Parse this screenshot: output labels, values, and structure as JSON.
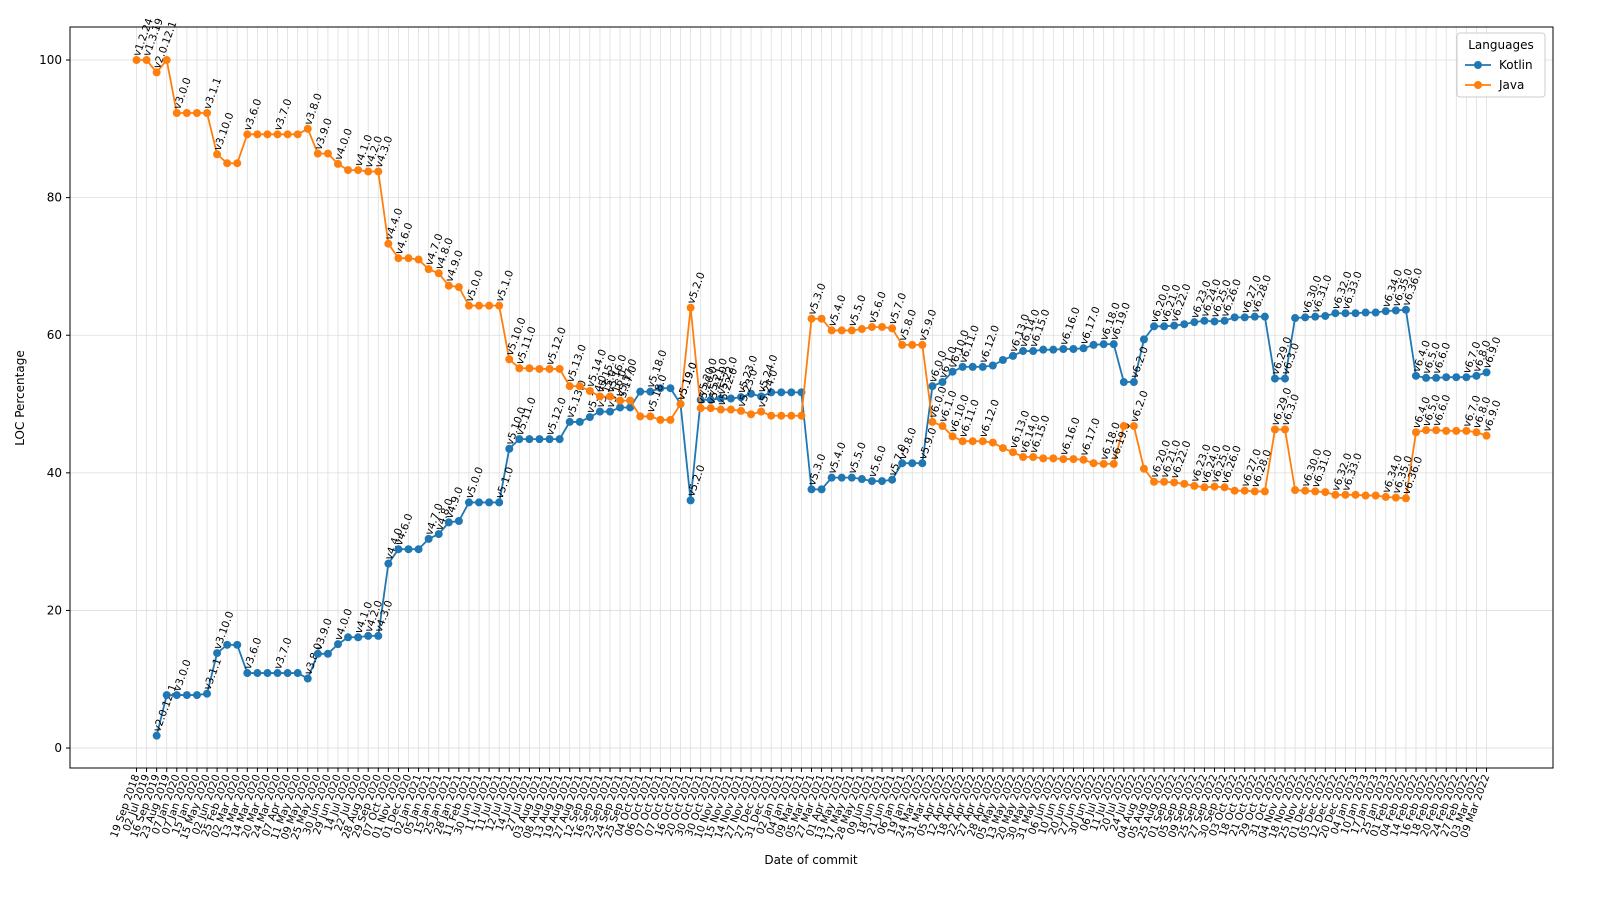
{
  "chart_data": {
    "type": "line",
    "x_label": "Date of commit",
    "y_label": "LOC Percentage",
    "legend_title": "Languages",
    "legend": "upper right",
    "grid": true,
    "ylim": [
      -2.9,
      104.8
    ],
    "yticks": [
      0,
      20,
      40,
      60,
      80,
      100
    ],
    "categories": [
      "19 Sep 2018",
      "02 Jul 2019",
      "16 Sep 2019",
      "23 Aug 2019",
      "07 Jan 2020",
      "07 Jan 2020",
      "15 Jan 2020",
      "15 May 2020",
      "02 Jun 2020",
      "25 Feb 2020",
      "02 Mar 2020",
      "13 Mar 2020",
      "14 Mar 2020",
      "20 Mar 2020",
      "24 Mar 2020",
      "07 Apr 2020",
      "11 May 2020",
      "09 May 2020",
      "25 May 2020",
      "30 Jun 2020",
      "29 Jun 2020",
      "14 Jul 2020",
      "22 Jul 2020",
      "28 Aug 2020",
      "29 Sep 2020",
      "07 Oct 2020",
      "01 Nov 2020",
      "01 Dec 2020",
      "02 Jan 2021",
      "05 Jan 2021",
      "15 Jan 2021",
      "25 Jan 2021",
      "28 Jan 2021",
      "11 Feb 2021",
      "30 Jun 2021",
      "11 Jul 2021",
      "11 Jul 2021",
      "12 Jul 2021",
      "14 Jul 2021",
      "27 Jul 2021",
      "03 Aug 2021",
      "08 Aug 2021",
      "13 Aug 2021",
      "19 Aug 2021",
      "27 Aug 2021",
      "12 Sep 2021",
      "16 Sep 2021",
      "23 Sep 2021",
      "24 Sep 2021",
      "25 Sep 2021",
      "04 Oct 2021",
      "06 Oct 2021",
      "07 Oct 2021",
      "07 Oct 2021",
      "16 Oct 2021",
      "20 Oct 2021",
      "30 Oct 2021",
      "30 Oct 2021",
      "10 Nov 2021",
      "15 Nov 2021",
      "14 Nov 2021",
      "27 Nov 2021",
      "27 Dec 2021",
      "31 Dec 2021",
      "02 Jan 2021",
      "04 Jan 2021",
      "09 Mar 2021",
      "05 Mar 2021",
      "27 Mar 2021",
      "01 Apr 2021",
      "13 May 2021",
      "17 May 2021",
      "28 May 2021",
      "09 Jun 2021",
      "18 Jun 2021",
      "21 Jun 2021",
      "06 Jan 2021",
      "19 Jan 2022",
      "24 Mar 2022",
      "31 Mar 2022",
      "05 Apr 2022",
      "12 Apr 2022",
      "18 Apr 2022",
      "22 Apr 2022",
      "27 Apr 2022",
      "28 Apr 2022",
      "05 May 2022",
      "13 May 2022",
      "20 May 2022",
      "30 May 2022",
      "31 May 2022",
      "06 Jun 2022",
      "10 Jun 2022",
      "20 Jun 2022",
      "27 Jun 2022",
      "30 Jun 2022",
      "06 Jul 2022",
      "11 Jul 2022",
      "20 Jul 2022",
      "24 Jul 2022",
      "04 Aug 2022",
      "05 Aug 2022",
      "25 Aug 2022",
      "01 Sep 2022",
      "05 Sep 2022",
      "09 Sep 2022",
      "25 Sep 2022",
      "27 Sep 2022",
      "30 Sep 2022",
      "03 Oct 2022",
      "18 Oct 2022",
      "21 Oct 2022",
      "29 Oct 2022",
      "31 Oct 2022",
      "04 Nov 2022",
      "18 Nov 2022",
      "25 Nov 2022",
      "01 Dec 2022",
      "05 Dec 2022",
      "12 Dec 2022",
      "20 Dec 2022",
      "04 Jan 2023",
      "10 Jan 2023",
      "17 Jan 2023",
      "25 Jan 2023",
      "01 Feb 2022",
      "04 Feb 2022",
      "14 Feb 2022",
      "16 Feb 2022",
      "18 Feb 2022",
      "20 Feb 2022",
      "24 Feb 2022",
      "27 Feb 2022",
      "03 Mar 2022",
      "09 Mar 2022"
    ],
    "annotations": [
      "v1.2.24",
      "v1.3.19",
      "v2.0.12.1",
      null,
      "v3.0.0",
      null,
      null,
      "v3.1.1",
      "v3.10.0",
      null,
      null,
      "v3.6.0",
      null,
      null,
      "v3.7.0",
      null,
      null,
      "v3.8.0",
      "v3.9.0",
      null,
      "v4.0.0",
      null,
      "v4.1.0",
      "v4.2.0",
      "v4.3.0",
      "v4.4.0",
      "v4.6.0",
      null,
      null,
      "v4.7.0",
      "v4.8.0",
      "v4.9.0",
      null,
      "v5.0.0",
      null,
      null,
      "v5.1.0",
      "v5.10.0",
      "v5.11.0",
      null,
      null,
      "v5.12.0",
      null,
      "v5.13.0",
      null,
      "v5.14.0",
      "v5.15.0",
      "v5.16.0",
      "v5.17.0",
      null,
      null,
      "v5.18.0",
      null,
      null,
      "v5.19.0",
      "v5.2.0",
      "v5.20.0",
      "v5.21.0",
      "v5.22.0",
      null,
      "v5.23.0",
      null,
      "v5.24.0",
      null,
      null,
      null,
      null,
      "v5.3.0",
      null,
      "v5.4.0",
      null,
      "v5.5.0",
      null,
      "v5.6.0",
      null,
      "v5.7.0",
      "v5.8.0",
      null,
      "v5.9.0",
      "v6.0.0",
      "v6.1.0",
      "v6.10.0",
      "v6.11.0",
      null,
      "v6.12.0",
      null,
      null,
      "v6.13.0",
      "v6.14.0",
      "v6.15.0",
      null,
      null,
      "v6.16.0",
      null,
      "v6.17.0",
      null,
      "v6.18.0",
      "v6.19.0",
      null,
      "v6.2.0",
      null,
      "v6.20.0",
      "v6.21.0",
      "v6.22.0",
      null,
      "v6.23.0",
      "v6.24.0",
      "v6.25.0",
      "v6.26.0",
      null,
      "v6.27.0",
      "v6.28.0",
      null,
      "v6.29.0",
      "v6.3.0",
      null,
      "v6.30.0",
      "v6.31.0",
      null,
      "v6.32.0",
      "v6.33.0",
      null,
      null,
      null,
      "v6.34.0",
      "v6.35.0",
      "v6.36.0",
      "v6.4.0",
      "v6.5.0",
      "v6.6.0",
      null,
      null,
      "v6.7.0",
      "v6.8.0",
      "v6.9.0"
    ],
    "series": [
      {
        "name": "Kotlin",
        "color": "#1f77b4",
        "values": [
          null,
          null,
          1.8,
          7.7,
          7.7,
          7.7,
          7.7,
          7.9,
          13.8,
          15,
          15,
          10.9,
          10.9,
          10.9,
          10.9,
          10.9,
          10.9,
          10.1,
          13.7,
          13.7,
          15.1,
          16.1,
          16.1,
          16.3,
          16.3,
          26.8,
          28.9,
          28.9,
          28.9,
          30.4,
          31.1,
          32.8,
          33,
          35.7,
          35.7,
          35.7,
          35.7,
          43.5,
          44.9,
          44.9,
          44.9,
          44.9,
          44.9,
          47.4,
          47.4,
          48.1,
          48.9,
          48.9,
          49.5,
          49.5,
          51.8,
          51.8,
          52.3,
          52.3,
          50,
          36,
          50.6,
          50.6,
          50.8,
          50.8,
          51,
          51.5,
          51.1,
          51.7,
          51.7,
          51.7,
          51.7,
          37.6,
          37.6,
          39.3,
          39.3,
          39.3,
          39.1,
          38.8,
          38.8,
          39,
          41.4,
          41.4,
          41.4,
          52.6,
          53.2,
          54.7,
          55.4,
          55.4,
          55.4,
          55.6,
          56.4,
          57,
          57.7,
          57.7,
          57.9,
          57.9,
          58,
          58,
          58.1,
          58.6,
          58.7,
          58.7,
          53.2,
          53.2,
          59.4,
          61.3,
          61.3,
          61.4,
          61.6,
          61.9,
          62.1,
          62,
          62.1,
          62.6,
          62.6,
          62.7,
          62.7,
          53.7,
          53.7,
          62.5,
          62.6,
          62.7,
          62.8,
          63.2,
          63.2,
          63.2,
          63.3,
          63.3,
          63.5,
          63.6,
          63.7,
          54.1,
          53.8,
          53.8,
          53.9,
          53.9,
          53.9,
          54.1,
          54.6
        ]
      },
      {
        "name": "Java",
        "color": "#ff7f0e",
        "values": [
          100,
          100,
          98.2,
          100,
          92.3,
          92.3,
          92.3,
          92.3,
          86.3,
          85,
          85,
          89.2,
          89.2,
          89.2,
          89.2,
          89.2,
          89.2,
          90,
          86.4,
          86.4,
          84.9,
          84,
          84,
          83.8,
          83.8,
          73.3,
          71.2,
          71.2,
          71,
          69.6,
          69,
          67.2,
          67,
          64.3,
          64.3,
          64.3,
          64.3,
          56.5,
          55.2,
          55.2,
          55.1,
          55.1,
          55.1,
          52.6,
          52.6,
          51.9,
          51.1,
          51.1,
          50.5,
          50.5,
          48.2,
          48.2,
          47.7,
          47.7,
          50,
          64,
          49.4,
          49.4,
          49.2,
          49.2,
          49,
          48.5,
          48.9,
          48.3,
          48.3,
          48.3,
          48.3,
          62.4,
          62.4,
          60.7,
          60.7,
          60.7,
          60.9,
          61.2,
          61.2,
          61,
          58.6,
          58.6,
          58.6,
          47.4,
          46.8,
          45.3,
          44.6,
          44.6,
          44.6,
          44.4,
          43.6,
          43,
          42.3,
          42.3,
          42.1,
          42.1,
          42,
          42,
          41.9,
          41.4,
          41.3,
          41.3,
          46.8,
          46.8,
          40.6,
          38.7,
          38.7,
          38.6,
          38.4,
          38.1,
          37.9,
          38,
          37.9,
          37.4,
          37.4,
          37.3,
          37.3,
          46.3,
          46.3,
          37.5,
          37.4,
          37.3,
          37.2,
          36.8,
          36.8,
          36.8,
          36.7,
          36.7,
          36.5,
          36.4,
          36.3,
          45.9,
          46.2,
          46.2,
          46.1,
          46.1,
          46.1,
          45.9,
          45.4
        ]
      }
    ]
  }
}
